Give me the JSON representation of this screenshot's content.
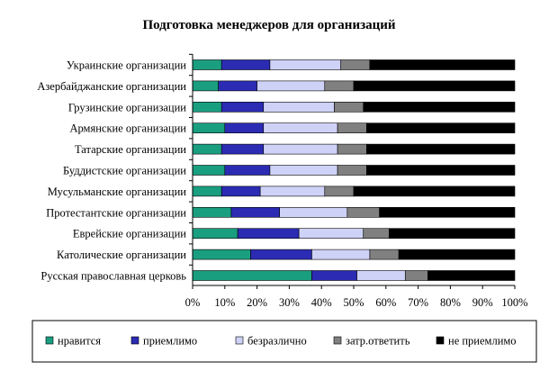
{
  "chart_data": {
    "type": "bar",
    "orientation": "horizontal",
    "stacked": "percent",
    "title": "Подготовка менеджеров для организаций",
    "categories": [
      "Украинские организации",
      "Азербайджанские организации",
      "Грузинские организации",
      "Армянские организации",
      "Татарские организации",
      "Буддистские организации",
      "Мусульманские организации",
      "Протестантские организации",
      "Еврейские организации",
      "Католические организации",
      "Русская православная церковь"
    ],
    "series": [
      {
        "name": "нравится",
        "color": "#1a9e80",
        "values": [
          9,
          8,
          9,
          10,
          9,
          10,
          9,
          12,
          14,
          18,
          37
        ]
      },
      {
        "name": "приемлимо",
        "color": "#2b2bb3",
        "values": [
          15,
          12,
          13,
          12,
          13,
          14,
          12,
          15,
          19,
          19,
          14
        ]
      },
      {
        "name": "безразлично",
        "color": "#cfd2f7",
        "values": [
          22,
          21,
          22,
          23,
          23,
          21,
          20,
          21,
          20,
          18,
          15
        ]
      },
      {
        "name": "затр.ответить",
        "color": "#808080",
        "values": [
          9,
          9,
          9,
          9,
          9,
          9,
          9,
          10,
          8,
          9,
          7
        ]
      },
      {
        "name": "не приемлимо",
        "color": "#000000",
        "values": [
          45,
          50,
          47,
          46,
          46,
          46,
          50,
          42,
          39,
          36,
          27
        ]
      }
    ],
    "xlim": [
      0,
      100
    ],
    "xticks": [
      "0%",
      "10%",
      "20%",
      "30%",
      "40%",
      "50%",
      "60%",
      "70%",
      "80%",
      "90%",
      "100%"
    ],
    "legend_position": "bottom",
    "grid": false
  }
}
